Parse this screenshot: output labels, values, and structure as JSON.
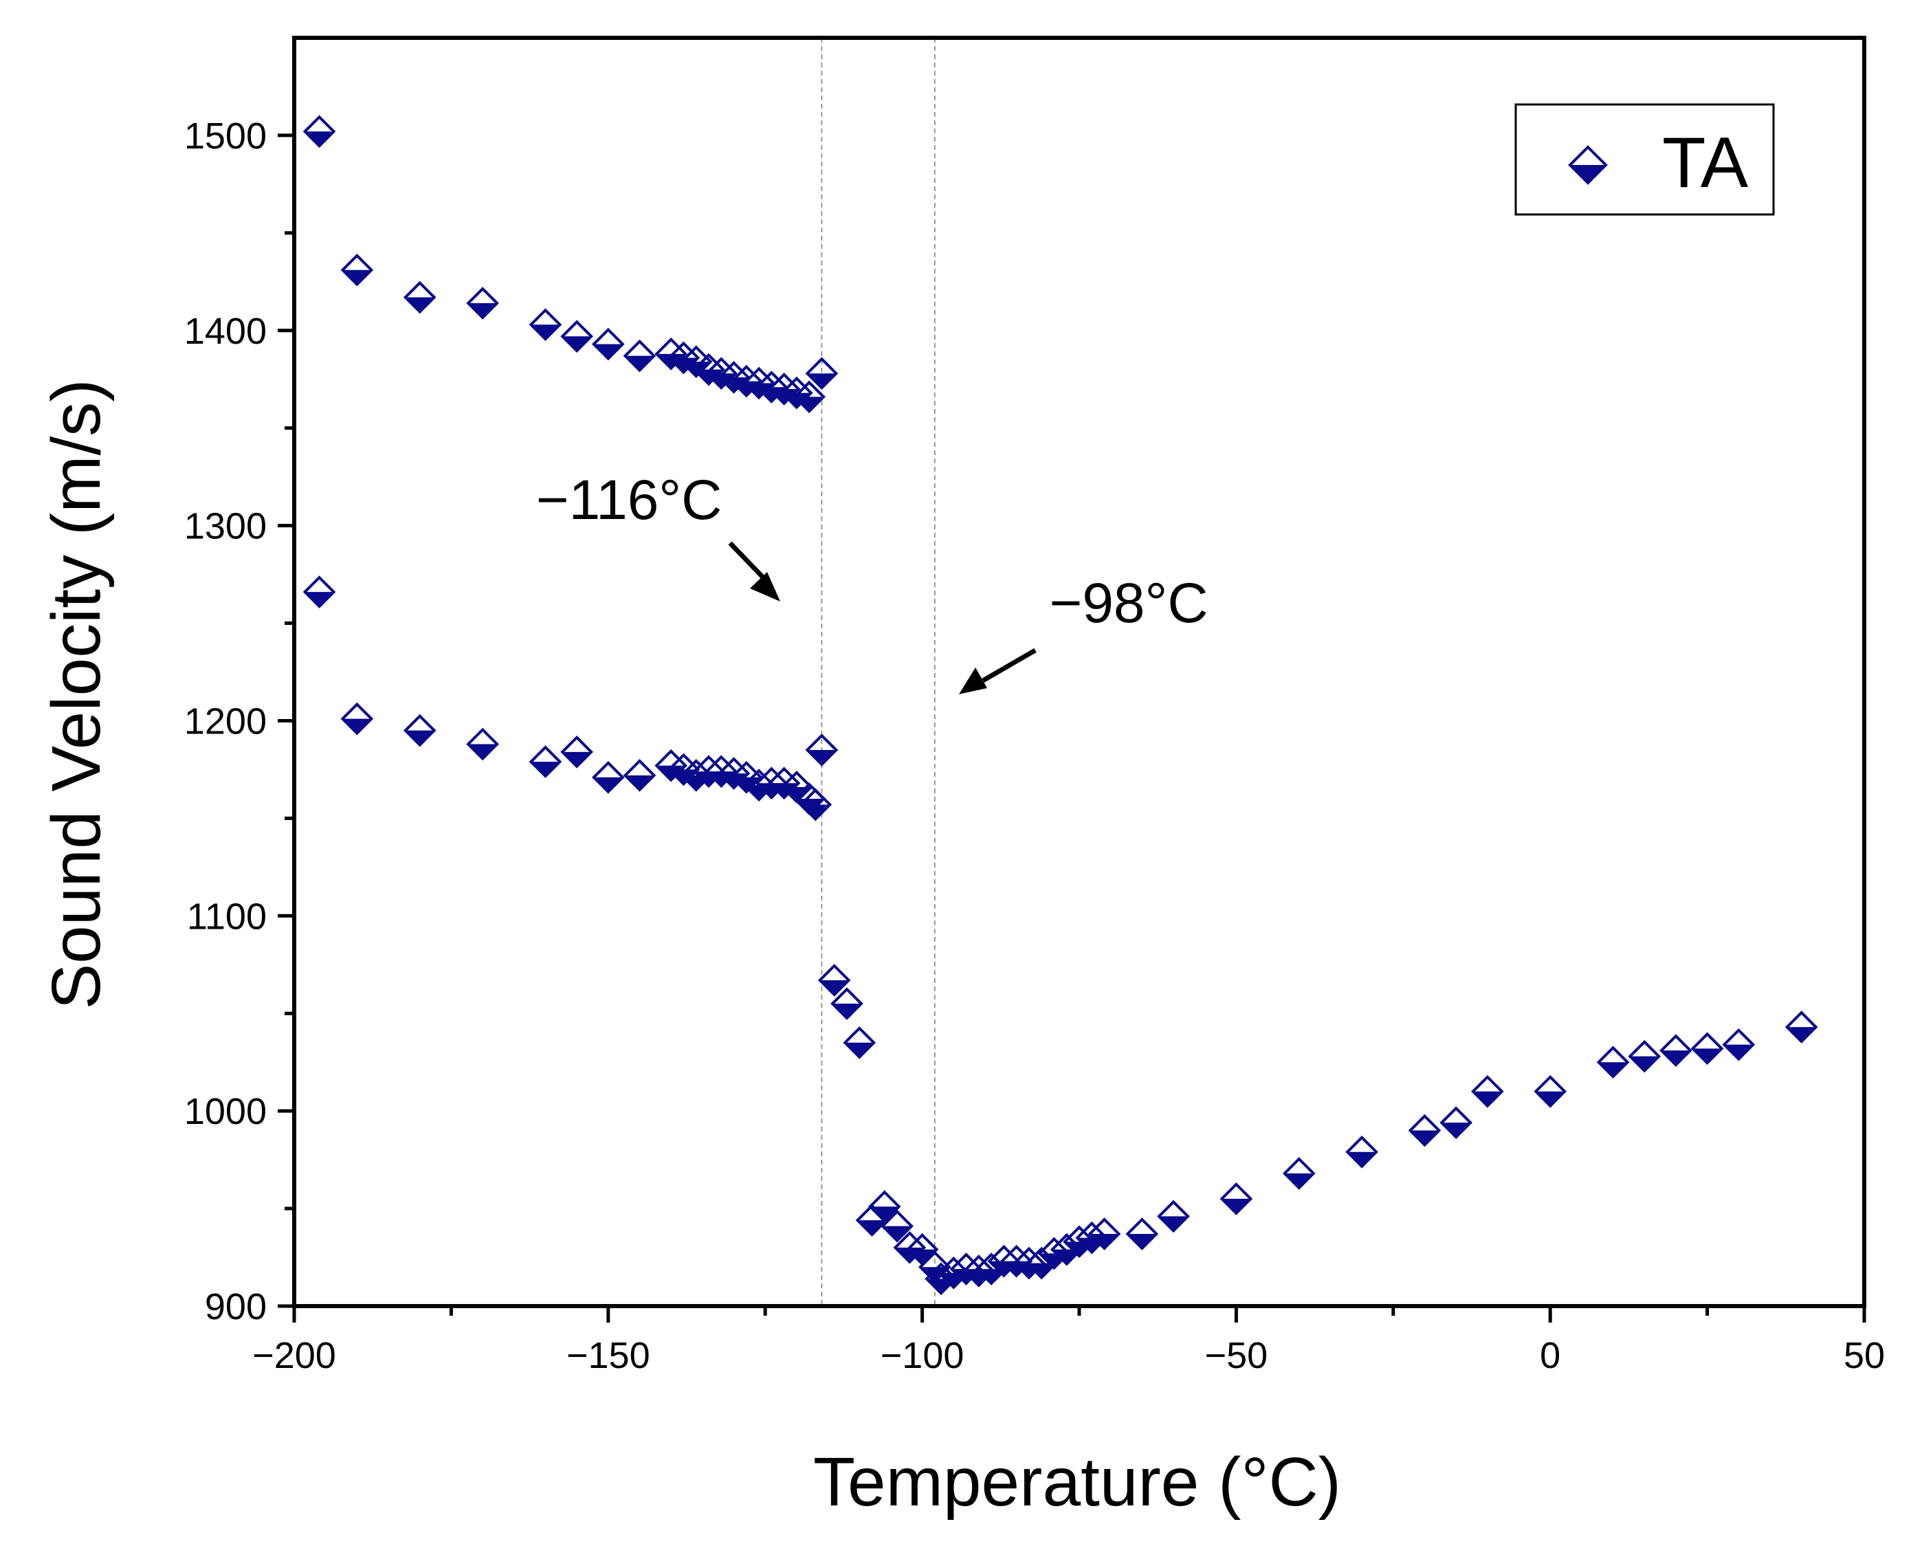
{
  "chart_data": {
    "type": "scatter",
    "xlabel": "Temperature (°C)",
    "ylabel": "Sound Velocity (m/s)",
    "xlim": [
      -200,
      50
    ],
    "ylim": [
      900,
      1550
    ],
    "xticks": [
      -200,
      -150,
      -100,
      -50,
      0,
      50
    ],
    "xtick_labels": [
      "−200",
      "−150",
      "−100",
      "−50",
      "0",
      "50"
    ],
    "yticks": [
      900,
      1000,
      1100,
      1200,
      1300,
      1400,
      1500
    ],
    "ytick_labels": [
      "900",
      "1000",
      "1100",
      "1200",
      "1300",
      "1400",
      "1500"
    ],
    "legend": {
      "position": "top-right",
      "label": "TA"
    },
    "marker": "half-filled diamond",
    "colors": {
      "marker": "#0a0a8c",
      "axis": "#000000",
      "guide": "#999999"
    },
    "vlines": [
      -116,
      -98
    ],
    "annotations": [
      {
        "text": "−116°C",
        "x": -116
      },
      {
        "text": "−98°C",
        "x": -98
      }
    ],
    "series": [
      {
        "name": "TA",
        "points": [
          [
            -196,
            1502
          ],
          [
            -190,
            1431
          ],
          [
            -180,
            1417
          ],
          [
            -170,
            1414
          ],
          [
            -160,
            1403
          ],
          [
            -155,
            1397
          ],
          [
            -150,
            1393
          ],
          [
            -145,
            1387
          ],
          [
            -140,
            1388
          ],
          [
            -138,
            1386
          ],
          [
            -136,
            1384
          ],
          [
            -134,
            1380
          ],
          [
            -132,
            1378
          ],
          [
            -130,
            1376
          ],
          [
            -128,
            1374
          ],
          [
            -126,
            1373
          ],
          [
            -124,
            1371
          ],
          [
            -122,
            1370
          ],
          [
            -120,
            1368
          ],
          [
            -118,
            1366
          ],
          [
            -116,
            1378
          ],
          [
            -196,
            1266
          ],
          [
            -190,
            1201
          ],
          [
            -180,
            1195
          ],
          [
            -170,
            1188
          ],
          [
            -160,
            1179
          ],
          [
            -155,
            1184
          ],
          [
            -150,
            1171
          ],
          [
            -145,
            1172
          ],
          [
            -140,
            1177
          ],
          [
            -138,
            1175
          ],
          [
            -136,
            1172
          ],
          [
            -134,
            1174
          ],
          [
            -132,
            1174
          ],
          [
            -130,
            1173
          ],
          [
            -128,
            1171
          ],
          [
            -126,
            1167
          ],
          [
            -124,
            1168
          ],
          [
            -122,
            1168
          ],
          [
            -120,
            1166
          ],
          [
            -118,
            1160
          ],
          [
            -117,
            1157
          ],
          [
            -116,
            1185
          ],
          [
            -114,
            1067
          ],
          [
            -112,
            1055
          ],
          [
            -110,
            1035
          ],
          [
            -108,
            944
          ],
          [
            -106,
            951
          ],
          [
            -104,
            941
          ],
          [
            -102,
            930
          ],
          [
            -100,
            929
          ],
          [
            -98,
            920
          ],
          [
            -97,
            914
          ],
          [
            -95,
            917
          ],
          [
            -93,
            919
          ],
          [
            -91,
            918
          ],
          [
            -89,
            919
          ],
          [
            -87,
            923
          ],
          [
            -85,
            923
          ],
          [
            -83,
            922
          ],
          [
            -81,
            922
          ],
          [
            -79,
            927
          ],
          [
            -77,
            929
          ],
          [
            -75,
            933
          ],
          [
            -73,
            935
          ],
          [
            -71,
            937
          ],
          [
            -65,
            937
          ],
          [
            -60,
            946
          ],
          [
            -50,
            955
          ],
          [
            -40,
            968
          ],
          [
            -30,
            979
          ],
          [
            -20,
            990
          ],
          [
            -15,
            994
          ],
          [
            -10,
            1010
          ],
          [
            0,
            1010
          ],
          [
            10,
            1025
          ],
          [
            15,
            1028
          ],
          [
            20,
            1031
          ],
          [
            25,
            1032
          ],
          [
            30,
            1034
          ],
          [
            40,
            1043
          ]
        ]
      }
    ]
  }
}
